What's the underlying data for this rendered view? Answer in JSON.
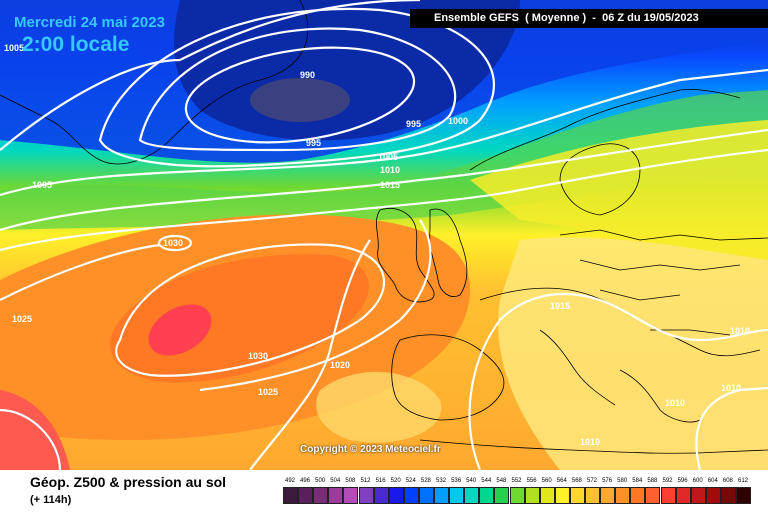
{
  "header": {
    "date": "Mercredi 24 mai 2023",
    "local_time": "2:00 locale",
    "ensemble_title": "Ensemble GEFS  ( Moyenne )  -  06 Z du 19/05/2023"
  },
  "footer": {
    "parameter": "Géop. Z500 & pression au sol",
    "lead_time": "(+ 114h)",
    "copyright": "Copyright © 2023 Meteociel.fr"
  },
  "legend": {
    "values": [
      "492",
      "496",
      "500",
      "504",
      "508",
      "512",
      "516",
      "520",
      "524",
      "528",
      "532",
      "536",
      "540",
      "544",
      "548",
      "552",
      "556",
      "560",
      "564",
      "568",
      "572",
      "576",
      "580",
      "584",
      "588",
      "592",
      "596",
      "600",
      "604",
      "608",
      "612"
    ],
    "colors": [
      "#3a1b3c",
      "#5a1f5c",
      "#7a2c78",
      "#9a3c9a",
      "#b44cb8",
      "#8040c0",
      "#4a2ad0",
      "#1a1ae8",
      "#0040ff",
      "#0070ff",
      "#00a0ff",
      "#00c8f0",
      "#00d8c0",
      "#00d890",
      "#28d050",
      "#70d830",
      "#b0e020",
      "#e0e818",
      "#fff028",
      "#ffd82c",
      "#ffc030",
      "#ffa830",
      "#ff9028",
      "#ff7824",
      "#ff6030",
      "#ff4030",
      "#e02828",
      "#c01818",
      "#a00c0c",
      "#780808",
      "#300000"
    ]
  },
  "isobars": {
    "labels": [
      {
        "text": "1005"
      },
      {
        "text": "990"
      },
      {
        "text": "995"
      },
      {
        "text": "995"
      },
      {
        "text": "1000"
      },
      {
        "text": "1005"
      },
      {
        "text": "1010"
      },
      {
        "text": "1015"
      },
      {
        "text": "1005"
      },
      {
        "text": "1030"
      },
      {
        "text": "1025"
      },
      {
        "text": "1030"
      },
      {
        "text": "1020"
      },
      {
        "text": "1025"
      },
      {
        "text": "1015"
      },
      {
        "text": "1010"
      },
      {
        "text": "1010"
      },
      {
        "text": "1010"
      },
      {
        "text": "1010"
      }
    ]
  },
  "colors": {
    "isobar": "#ffffff",
    "border": "#000000",
    "title_bg": "#000000",
    "date_text": "#36c8ff"
  }
}
